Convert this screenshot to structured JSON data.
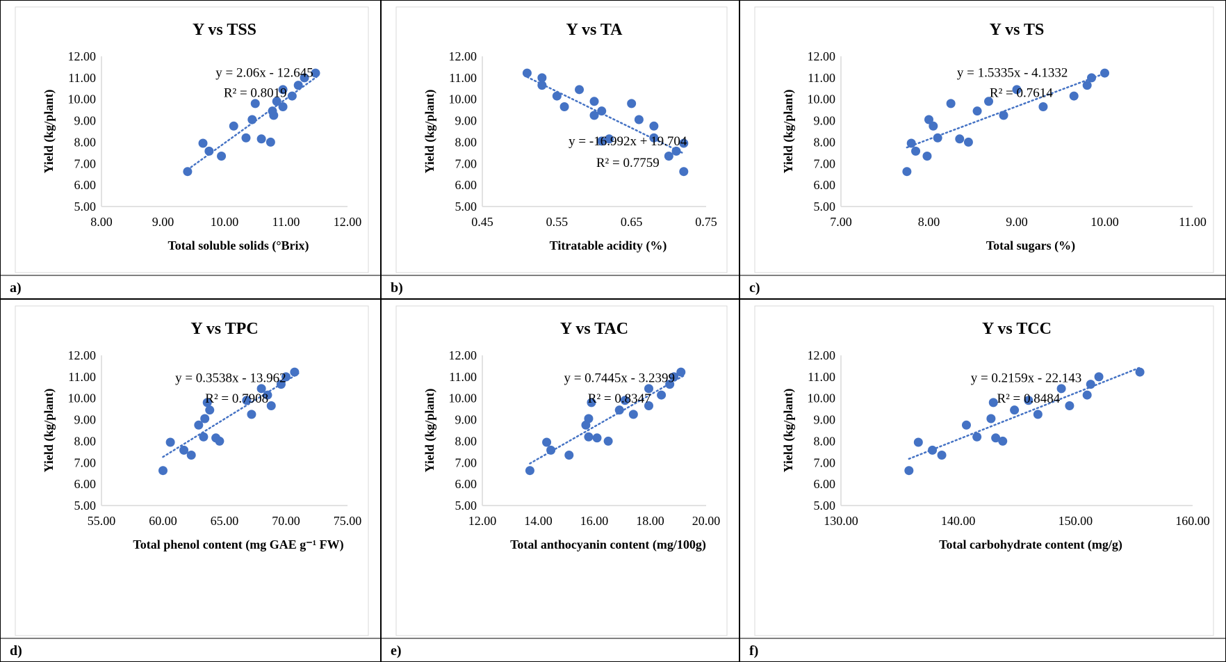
{
  "colors": {
    "marker": "#4472C4",
    "trendline": "#4472C4",
    "axis": "#d9d9d9",
    "text": "#000000",
    "border": "#000000"
  },
  "panels": [
    {
      "label": "a)"
    },
    {
      "label": "b)"
    },
    {
      "label": "c)"
    },
    {
      "label": "d)"
    },
    {
      "label": "e)"
    },
    {
      "label": "f)"
    }
  ],
  "chart_data": [
    {
      "type": "scatter",
      "title": "Y vs TSS",
      "xlabel": "Total soluble solids (°Brix)",
      "ylabel": "Yield (kg/plant)",
      "xlim": [
        8,
        12
      ],
      "ylim": [
        5,
        12
      ],
      "xticks": [
        "8.00",
        "9.00",
        "10.00",
        "11.00",
        "12.00"
      ],
      "yticks": [
        "5.00",
        "6.00",
        "7.00",
        "8.00",
        "9.00",
        "10.00",
        "11.00",
        "12.00"
      ],
      "grid": false,
      "trendline": {
        "equation": "y = 2.06x - 12.645",
        "r2": "R² = 0.8019",
        "slope": 2.06,
        "intercept": -12.645,
        "x_range": [
          9.4,
          11.5
        ]
      },
      "points": [
        [
          9.4,
          6.63
        ],
        [
          9.65,
          7.95
        ],
        [
          9.75,
          7.58
        ],
        [
          9.95,
          7.35
        ],
        [
          10.15,
          8.75
        ],
        [
          10.35,
          8.2
        ],
        [
          10.45,
          9.05
        ],
        [
          10.5,
          9.8
        ],
        [
          10.6,
          8.15
        ],
        [
          10.75,
          8.0
        ],
        [
          10.78,
          9.45
        ],
        [
          10.8,
          9.25
        ],
        [
          10.85,
          9.9
        ],
        [
          10.95,
          9.65
        ],
        [
          10.95,
          10.45
        ],
        [
          11.1,
          10.15
        ],
        [
          11.2,
          10.65
        ],
        [
          11.3,
          11.0
        ],
        [
          11.48,
          11.22
        ]
      ]
    },
    {
      "type": "scatter",
      "title": "Y vs TA",
      "xlabel": "Titratable acidity (%)",
      "ylabel": "Yield (kg/plant)",
      "xlim": [
        0.45,
        0.75
      ],
      "ylim": [
        5,
        12
      ],
      "xticks": [
        "0.45",
        "0.55",
        "0.65",
        "0.75"
      ],
      "yticks": [
        "5.00",
        "6.00",
        "7.00",
        "8.00",
        "9.00",
        "10.00",
        "11.00",
        "12.00"
      ],
      "grid": false,
      "trendline": {
        "equation": "y = -16.992x + 19.704",
        "r2": "R² = 0.7759",
        "slope": -16.992,
        "intercept": 19.704,
        "x_range": [
          0.51,
          0.72
        ]
      },
      "points": [
        [
          0.51,
          11.22
        ],
        [
          0.53,
          11.0
        ],
        [
          0.53,
          10.65
        ],
        [
          0.55,
          10.15
        ],
        [
          0.56,
          9.65
        ],
        [
          0.58,
          10.45
        ],
        [
          0.6,
          9.9
        ],
        [
          0.6,
          9.25
        ],
        [
          0.61,
          9.45
        ],
        [
          0.61,
          8.05
        ],
        [
          0.62,
          8.15
        ],
        [
          0.65,
          9.8
        ],
        [
          0.66,
          9.05
        ],
        [
          0.68,
          8.75
        ],
        [
          0.68,
          8.2
        ],
        [
          0.7,
          7.35
        ],
        [
          0.71,
          7.58
        ],
        [
          0.72,
          7.95
        ],
        [
          0.72,
          6.63
        ]
      ]
    },
    {
      "type": "scatter",
      "title": "Y vs TS",
      "xlabel": "Total sugars (%)",
      "ylabel": "Yield (kg/plant)",
      "xlim": [
        7,
        11
      ],
      "ylim": [
        5,
        12
      ],
      "xticks": [
        "7.00",
        "8.00",
        "9.00",
        "10.00",
        "11.00"
      ],
      "yticks": [
        "5.00",
        "6.00",
        "7.00",
        "8.00",
        "9.00",
        "10.00",
        "11.00",
        "12.00"
      ],
      "grid": false,
      "trendline": {
        "equation": "y = 1.5335x - 4.1332",
        "r2": "R² = 0.7614",
        "slope": 1.5335,
        "intercept": -4.1332,
        "x_range": [
          7.75,
          10.0
        ]
      },
      "points": [
        [
          7.75,
          6.63
        ],
        [
          7.8,
          7.95
        ],
        [
          7.85,
          7.58
        ],
        [
          7.98,
          7.35
        ],
        [
          8.0,
          9.05
        ],
        [
          8.05,
          8.75
        ],
        [
          8.1,
          8.2
        ],
        [
          8.25,
          9.8
        ],
        [
          8.35,
          8.15
        ],
        [
          8.45,
          8.0
        ],
        [
          8.55,
          9.45
        ],
        [
          8.68,
          9.9
        ],
        [
          8.85,
          9.25
        ],
        [
          9.0,
          10.45
        ],
        [
          9.3,
          9.65
        ],
        [
          9.65,
          10.15
        ],
        [
          9.8,
          10.65
        ],
        [
          9.85,
          11.0
        ],
        [
          10.0,
          11.22
        ]
      ]
    },
    {
      "type": "scatter",
      "title": "Y vs TPC",
      "xlabel": "Total phenol content (mg GAE g⁻¹ FW)",
      "ylabel": "Yield (kg/plant)",
      "xlim": [
        55,
        75
      ],
      "ylim": [
        5,
        12
      ],
      "xticks": [
        "55.00",
        "60.00",
        "65.00",
        "70.00",
        "75.00"
      ],
      "yticks": [
        "5.00",
        "6.00",
        "7.00",
        "8.00",
        "9.00",
        "10.00",
        "11.00",
        "12.00"
      ],
      "grid": false,
      "trendline": {
        "equation": "y = 0.3538x - 13.962",
        "r2": "R² = 0.7908",
        "slope": 0.3538,
        "intercept": -13.962,
        "x_range": [
          60,
          71
        ]
      },
      "points": [
        [
          60.0,
          6.63
        ],
        [
          60.6,
          7.95
        ],
        [
          61.7,
          7.58
        ],
        [
          62.3,
          7.35
        ],
        [
          62.9,
          8.75
        ],
        [
          63.3,
          8.2
        ],
        [
          63.4,
          9.05
        ],
        [
          63.6,
          9.8
        ],
        [
          63.8,
          9.45
        ],
        [
          64.3,
          8.15
        ],
        [
          64.6,
          8.0
        ],
        [
          66.8,
          9.9
        ],
        [
          67.2,
          9.25
        ],
        [
          68.0,
          10.45
        ],
        [
          68.5,
          10.15
        ],
        [
          68.8,
          9.65
        ],
        [
          69.6,
          10.65
        ],
        [
          70.0,
          11.0
        ],
        [
          70.7,
          11.22
        ]
      ]
    },
    {
      "type": "scatter",
      "title": "Y vs TAC",
      "xlabel": "Total anthocyanin content (mg/100g)",
      "ylabel": "Yield (kg/plant)",
      "xlim": [
        12,
        20
      ],
      "ylim": [
        5,
        12
      ],
      "xticks": [
        "12.00",
        "14.00",
        "16.00",
        "18.00",
        "20.00"
      ],
      "yticks": [
        "5.00",
        "6.00",
        "7.00",
        "8.00",
        "9.00",
        "10.00",
        "11.00",
        "12.00"
      ],
      "grid": false,
      "trendline": {
        "equation": "y = 0.7445x - 3.2399",
        "r2": "R² = 0.8347",
        "slope": 0.7445,
        "intercept": -3.2399,
        "x_range": [
          13.7,
          19.2
        ]
      },
      "points": [
        [
          13.7,
          6.63
        ],
        [
          14.3,
          7.95
        ],
        [
          14.45,
          7.58
        ],
        [
          15.1,
          7.35
        ],
        [
          15.7,
          8.75
        ],
        [
          15.8,
          9.05
        ],
        [
          15.8,
          8.2
        ],
        [
          15.9,
          9.8
        ],
        [
          16.1,
          8.15
        ],
        [
          16.5,
          8.0
        ],
        [
          16.9,
          9.45
        ],
        [
          17.1,
          9.9
        ],
        [
          17.4,
          9.25
        ],
        [
          17.95,
          10.45
        ],
        [
          17.95,
          9.65
        ],
        [
          18.4,
          10.15
        ],
        [
          18.7,
          10.65
        ],
        [
          18.85,
          11.0
        ],
        [
          19.1,
          11.22
        ]
      ]
    },
    {
      "type": "scatter",
      "title": "Y vs TCC",
      "xlabel": "Total carbohydrate content (mg/g)",
      "ylabel": "Yield (kg/plant)",
      "xlim": [
        130,
        160
      ],
      "ylim": [
        5,
        12
      ],
      "xticks": [
        "130.00",
        "140.00",
        "150.00",
        "160.00"
      ],
      "yticks": [
        "5.00",
        "6.00",
        "7.00",
        "8.00",
        "9.00",
        "10.00",
        "11.00",
        "12.00"
      ],
      "grid": false,
      "trendline": {
        "equation": "y = 0.2159x - 22.143",
        "r2": "R² = 0.8484",
        "slope": 0.2159,
        "intercept": -22.143,
        "x_range": [
          135.8,
          155.5
        ]
      },
      "points": [
        [
          135.8,
          6.63
        ],
        [
          136.6,
          7.95
        ],
        [
          137.8,
          7.58
        ],
        [
          138.6,
          7.35
        ],
        [
          140.7,
          8.75
        ],
        [
          141.6,
          8.2
        ],
        [
          142.8,
          9.05
        ],
        [
          143.0,
          9.8
        ],
        [
          143.2,
          8.15
        ],
        [
          143.8,
          8.0
        ],
        [
          144.8,
          9.45
        ],
        [
          146.0,
          9.9
        ],
        [
          146.8,
          9.25
        ],
        [
          148.8,
          10.45
        ],
        [
          149.5,
          9.65
        ],
        [
          151.0,
          10.15
        ],
        [
          151.3,
          10.65
        ],
        [
          152.0,
          11.0
        ],
        [
          155.5,
          11.22
        ]
      ]
    }
  ]
}
